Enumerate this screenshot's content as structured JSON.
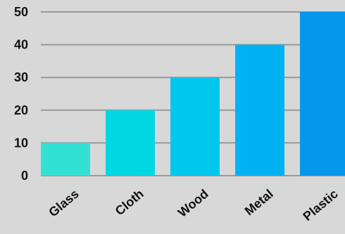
{
  "chart_data": {
    "type": "bar",
    "categories": [
      "Glass",
      "Cloth",
      "Wood",
      "Metal",
      "Plastic"
    ],
    "values": [
      10,
      20,
      30,
      40,
      50
    ],
    "bar_colors": [
      "#33e1d3",
      "#00d7e3",
      "#00c8ed",
      "#00b2f4",
      "#0597ea"
    ],
    "yticks": [
      "0",
      "10",
      "20",
      "30",
      "40",
      "50"
    ],
    "ylim": [
      0,
      50
    ],
    "grid": true,
    "grid_color": "#999999",
    "background": "#d8d8d8",
    "title": "",
    "xlabel": "",
    "ylabel": ""
  }
}
